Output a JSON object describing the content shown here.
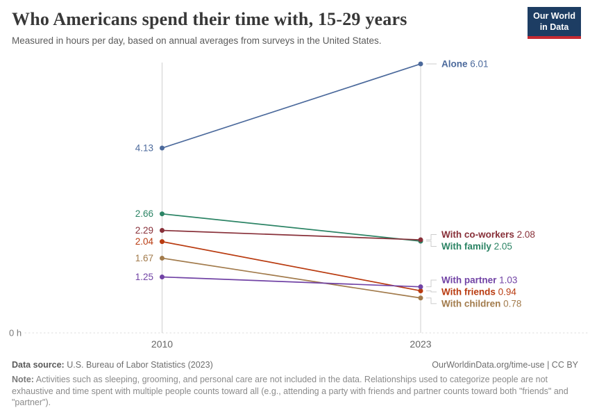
{
  "header": {
    "title": "Who Americans spend their time with, 15-29 years",
    "subtitle": "Measured in hours per day, based on annual averages from surveys in the United States.",
    "logo": {
      "line1": "Our World",
      "line2": "in Data",
      "bg_color": "#1d3d63",
      "bar_color": "#c52a32"
    }
  },
  "chart_data": {
    "type": "line",
    "subtype": "slope",
    "title": "Who Americans spend their time with, 15-29 years",
    "x": [
      2010,
      2023
    ],
    "x_tick_labels": [
      "2010",
      "2023"
    ],
    "y_zero_label": "0 h",
    "ylim": [
      0,
      6.3
    ],
    "grid": false,
    "legend_position": "end-labels",
    "series": [
      {
        "name": "Alone",
        "values": [
          4.13,
          6.01
        ],
        "color": "#4C6A9C"
      },
      {
        "name": "With family",
        "values": [
          2.66,
          2.05
        ],
        "color": "#2C8465"
      },
      {
        "name": "With co-workers",
        "values": [
          2.29,
          2.08
        ],
        "color": "#883039"
      },
      {
        "name": "With friends",
        "values": [
          2.04,
          0.94
        ],
        "color": "#B93B10"
      },
      {
        "name": "With children",
        "values": [
          1.67,
          0.78
        ],
        "color": "#A27B4C"
      },
      {
        "name": "With partner",
        "values": [
          1.25,
          1.03
        ],
        "color": "#7143A5"
      }
    ]
  },
  "footer": {
    "datasource_label": "Data source:",
    "datasource_text": " U.S. Bureau of Labor Statistics (2023)",
    "link_text": "OurWorldinData.org/time-use | CC BY",
    "note_label": "Note:",
    "note_text": " Activities such as sleeping, grooming, and personal care are not included in the data. Relationships used to categorize people are not exhaustive and time spent with multiple people counts toward all (e.g., attending a party with friends and partner counts toward both \"friends\" and \"partner\")."
  }
}
